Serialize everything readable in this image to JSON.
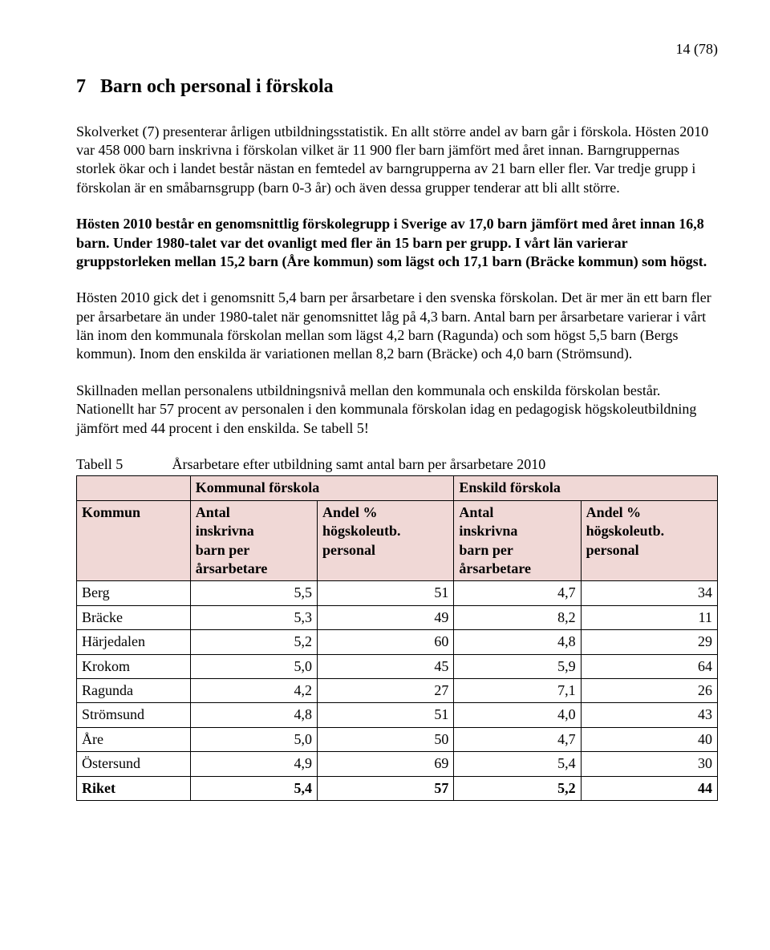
{
  "page_number": "14 (78)",
  "heading_number": "7",
  "heading_title": "Barn och personal i förskola",
  "para1": "Skolverket (7) presenterar årligen utbildningsstatistik. En allt större andel av barn går i förskola. Hösten 2010 var 458 000 barn inskrivna i förskolan vilket är 11 900 fler barn jämfört med året innan. Barngruppernas storlek ökar och i landet består nästan en femtedel av barngrupperna av 21 barn eller fler. Var tredje grupp i förskolan är en småbarnsgrupp (barn 0-3 år) och även dessa grupper tenderar att bli allt större.",
  "para2": "Hösten 2010 består en genomsnittlig förskolegrupp i Sverige av 17,0 barn jämfört med året innan 16,8 barn. Under 1980-talet var det ovanligt med fler än 15 barn per grupp. I vårt län varierar gruppstorleken mellan 15,2 barn (Åre kommun) som lägst och 17,1 barn (Bräcke kommun) som högst.",
  "para3": "Hösten 2010 gick det i genomsnitt 5,4 barn per årsarbetare i den svenska förskolan. Det är mer än ett barn fler per årsarbetare än under 1980-talet när genomsnittet låg på 4,3 barn. Antal barn per årsarbetare varierar i vårt län inom den kommunala förskolan mellan som lägst 4,2 barn (Ragunda) och som högst 5,5 barn (Bergs kommun). Inom den enskilda är variationen mellan 8,2 barn (Bräcke) och 4,0 barn (Strömsund).",
  "para4": "Skillnaden mellan personalens utbildningsnivå mellan den kommunala och enskilda förskolan består. Nationellt har 57 procent av personalen i den kommunala förskolan idag en pedagogisk högskoleutbildning jämfört med 44 procent i den enskilda. Se tabell 5!",
  "table": {
    "label_prefix": "Tabell 5",
    "label_title": "Årsarbetare efter utbildning samt antal barn per årsarbetare 2010",
    "group1": "Kommunal förskola",
    "group2": "Enskild förskola",
    "col_kommun": "Kommun",
    "col_a_line1": "Antal",
    "col_a_line2": "inskrivna",
    "col_a_line3": "barn per",
    "col_a_line4": "årsarbetare",
    "col_b_line1": "Andel %",
    "col_b_line2": "högskoleutb.",
    "col_b_line3": "personal",
    "rows": [
      {
        "k": "Berg",
        "a": "5,5",
        "b": "51",
        "c": "4,7",
        "d": "34"
      },
      {
        "k": "Bräcke",
        "a": "5,3",
        "b": "49",
        "c": "8,2",
        "d": "11"
      },
      {
        "k": "Härjedalen",
        "a": "5,2",
        "b": "60",
        "c": "4,8",
        "d": "29"
      },
      {
        "k": "Krokom",
        "a": "5,0",
        "b": "45",
        "c": "5,9",
        "d": "64"
      },
      {
        "k": "Ragunda",
        "a": "4,2",
        "b": "27",
        "c": "7,1",
        "d": "26"
      },
      {
        "k": "Strömsund",
        "a": "4,8",
        "b": "51",
        "c": "4,0",
        "d": "43"
      },
      {
        "k": "Åre",
        "a": "5,0",
        "b": "50",
        "c": "4,7",
        "d": "40"
      },
      {
        "k": "Östersund",
        "a": "4,9",
        "b": "69",
        "c": "5,4",
        "d": "30"
      },
      {
        "k": "Riket",
        "a": "5,4",
        "b": "57",
        "c": "5,2",
        "d": "44"
      }
    ],
    "header_bg": "#f0d8d6"
  }
}
